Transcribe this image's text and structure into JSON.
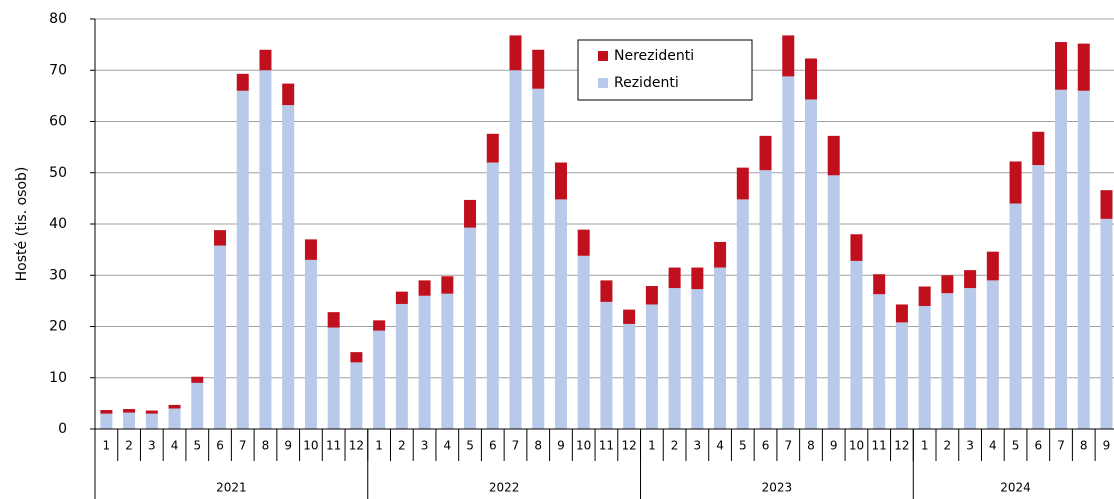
{
  "chart_data": {
    "type": "stacked_bar",
    "y_label": "Hosté (tis. osob)",
    "categories": [
      "1",
      "2",
      "3",
      "4",
      "5",
      "6",
      "7",
      "8",
      "9",
      "10",
      "11",
      "12",
      "1",
      "2",
      "3",
      "4",
      "5",
      "6",
      "7",
      "8",
      "9",
      "10",
      "11",
      "12",
      "1",
      "2",
      "3",
      "4",
      "5",
      "6",
      "7",
      "8",
      "9",
      "10",
      "11",
      "12",
      "1",
      "2",
      "3",
      "4",
      "5",
      "6",
      "7",
      "8",
      "9"
    ],
    "year_labels": [
      "2021",
      "2022",
      "2023",
      "2024"
    ],
    "series": [
      {
        "name": "Nerezidenti",
        "color": "#c0101e",
        "values": [
          0.7,
          0.7,
          0.6,
          0.7,
          1.2,
          3.0,
          3.3,
          4.0,
          4.2,
          4.0,
          3.0,
          2.0,
          2.0,
          2.4,
          3.0,
          3.4,
          5.4,
          5.6,
          6.8,
          7.6,
          7.2,
          5.1,
          4.2,
          2.8,
          3.6,
          4.0,
          4.2,
          5.0,
          6.2,
          6.7,
          8.0,
          8.0,
          7.7,
          5.2,
          3.9,
          3.5,
          3.8,
          3.5,
          3.5,
          5.6,
          8.2,
          6.5,
          9.3,
          9.2,
          5.6
        ]
      },
      {
        "name": "Rezidenti",
        "color": "#b8c9e9",
        "values": [
          3.0,
          3.2,
          3.0,
          4.0,
          9.0,
          35.8,
          66.0,
          70.0,
          63.2,
          33.0,
          19.8,
          13.0,
          19.2,
          24.4,
          26.0,
          26.4,
          39.3,
          52.0,
          70.0,
          66.4,
          44.8,
          33.8,
          24.8,
          20.5,
          24.3,
          27.5,
          27.3,
          31.5,
          44.8,
          50.5,
          68.8,
          64.3,
          49.5,
          32.8,
          26.3,
          20.8,
          24.0,
          26.5,
          27.5,
          29.0,
          44.0,
          51.5,
          66.2,
          66.0,
          41.0
        ]
      }
    ],
    "ylim": [
      0,
      80
    ],
    "yticks": [
      0,
      10,
      20,
      30,
      40,
      50,
      60,
      70,
      80
    ],
    "grid": true
  }
}
